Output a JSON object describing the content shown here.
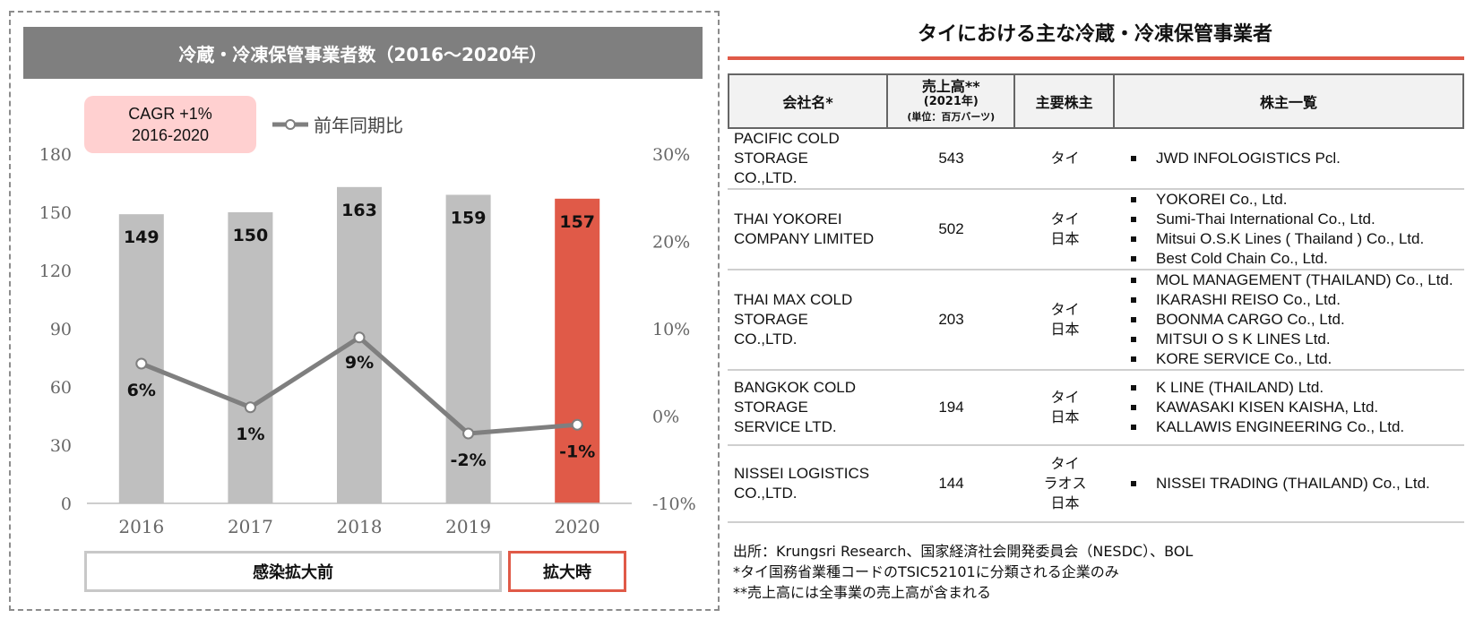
{
  "left": {
    "header_title": "冷蔵・冷凍保管事業者数（2016～2020年）",
    "cagr_line1": "CAGR +1%",
    "cagr_line2": "2016-2020",
    "legend_label": "前年同期比",
    "phase_before": "感染拡大前",
    "phase_during": "拡大時"
  },
  "chart_data": {
    "type": "bar",
    "categories": [
      "2016",
      "2017",
      "2018",
      "2019",
      "2020"
    ],
    "series": [
      {
        "type": "bar",
        "values": [
          149,
          150,
          163,
          159,
          157
        ],
        "colors": [
          "#bfbfbf",
          "#bfbfbf",
          "#bfbfbf",
          "#bfbfbf",
          "#e05a48"
        ]
      },
      {
        "name": "前年同期比",
        "type": "line",
        "axis": "right",
        "values": [
          6,
          1,
          9,
          -2,
          -1
        ],
        "labels": [
          "6%",
          "1%",
          "9%",
          "-2%",
          "-1%"
        ],
        "color": "#7f7f7f"
      }
    ],
    "ylim": [
      0,
      180
    ],
    "yticks": [
      0,
      30,
      60,
      90,
      120,
      150,
      180
    ],
    "y2lim": [
      -10,
      30
    ],
    "y2ticks": [
      "-10%",
      "0%",
      "10%",
      "20%",
      "30%"
    ],
    "grid": false
  },
  "table": {
    "title": "タイにおける主な冷蔵・冷凍保管事業者",
    "headers": {
      "company": "会社名*",
      "sales_line1": "売上高**",
      "sales_line2": "(2021年)",
      "sales_line3": "(単位：百万バーツ)",
      "shareholder": "主要株主",
      "list": "株主一覧"
    },
    "rows": [
      {
        "company": [
          "PACIFIC COLD",
          "STORAGE",
          "CO.,LTD."
        ],
        "sales": "543",
        "shareholders": [
          "タイ"
        ],
        "holders": [
          "JWD INFOLOGISTICS Pcl."
        ]
      },
      {
        "company": [
          "THAI YOKOREI",
          "COMPANY LIMITED"
        ],
        "sales": "502",
        "shareholders": [
          "タイ",
          "日本"
        ],
        "holders": [
          "YOKOREI Co., Ltd.",
          "Sumi-Thai International Co., Ltd.",
          "Mitsui O.S.K Lines ( Thailand ) Co., Ltd.",
          "Best Cold Chain Co., Ltd."
        ]
      },
      {
        "company": [
          "THAI MAX COLD",
          "STORAGE",
          "CO.,LTD."
        ],
        "sales": "203",
        "shareholders": [
          "タイ",
          "日本"
        ],
        "holders": [
          "MOL MANAGEMENT (THAILAND) Co., Ltd.",
          "IKARASHI REISO Co., Ltd.",
          "BOONMA CARGO Co., Ltd.",
          "MITSUI O S K LINES Ltd.",
          "KORE SERVICE Co., Ltd."
        ]
      },
      {
        "company": [
          "BANGKOK COLD",
          "STORAGE",
          "SERVICE LTD."
        ],
        "sales": "194",
        "shareholders": [
          "タイ",
          "日本"
        ],
        "holders": [
          "K LINE (THAILAND) Ltd.",
          "KAWASAKI KISEN KAISHA, Ltd.",
          "KALLAWIS ENGINEERING Co., Ltd."
        ]
      },
      {
        "company": [
          "NISSEI LOGISTICS",
          "CO.,LTD."
        ],
        "sales": "144",
        "shareholders": [
          "タイ",
          "ラオス",
          "日本"
        ],
        "holders": [
          "NISSEI TRADING (THAILAND) Co., Ltd."
        ]
      }
    ],
    "footnotes": [
      "出所：Krungsri Research、国家経済社会開発委員会（NESDC）、BOL",
      "*タイ国務省業種コードのTSIC52101に分類される企業のみ",
      "**売上高には全事業の売上高が含まれる"
    ]
  }
}
